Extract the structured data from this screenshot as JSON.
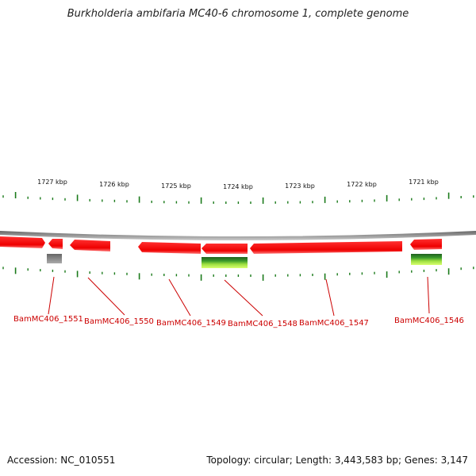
{
  "title": "Burkholderia ambifaria MC40-6 chromosome 1, complete genome",
  "scale_labels": [
    "1727 kbp",
    "1726 kbp",
    "1725 kbp",
    "1724 kbp",
    "1723 kbp",
    "1722 kbp",
    "1721 kbp"
  ],
  "genes": [
    {
      "label": "BamMC406_1551",
      "color": "#cc0000"
    },
    {
      "label": "BamMC406_1550",
      "color": "#cc0000"
    },
    {
      "label": "BamMC406_1549",
      "color": "#cc0000"
    },
    {
      "label": "BamMC406_1548",
      "color": "#cc0000"
    },
    {
      "label": "BamMC406_1547",
      "color": "#cc0000"
    },
    {
      "label": "BamMC406_1546",
      "color": "#cc0000"
    }
  ],
  "colors": {
    "backbone": "#888888",
    "gene_red": "#ff2020",
    "gene_red_dark": "#cc0000",
    "feature_grey": "#777777",
    "feature_green": "#2e7d32",
    "feature_yellow_green": "#c6f25a",
    "tick_green": "#1a7a1a"
  },
  "footer": {
    "accession_label": "Accession:",
    "accession": "NC_010551",
    "topology_label": "Topology:",
    "topology": "circular",
    "length_label": "Length:",
    "length": "3,443,583 bp",
    "genes_label": "Genes:",
    "genes_count": "3,147"
  }
}
